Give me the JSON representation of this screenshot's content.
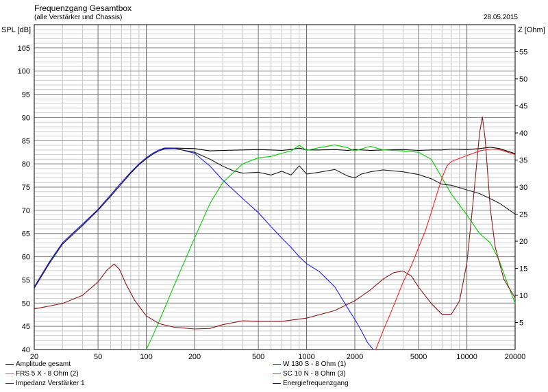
{
  "header": {
    "title": "Frequenzgang Gesamtbox",
    "subtitle": "(alle Verstärker und Chassis)",
    "date": "28.05.2015"
  },
  "chart_data": {
    "type": "line",
    "xscale": "log",
    "xlim": [
      20,
      20000
    ],
    "x_ticks": [
      "20",
      "50",
      "100",
      "200",
      "500",
      "1000",
      "2000",
      "5000",
      "10000",
      "20000"
    ],
    "x_tick_values": [
      20,
      50,
      100,
      200,
      500,
      1000,
      2000,
      5000,
      10000,
      20000
    ],
    "ylabel_left": "SPL [dB]",
    "ylim_left": [
      40,
      110
    ],
    "y_ticks_left": [
      "40",
      "45",
      "50",
      "55",
      "60",
      "65",
      "70",
      "75",
      "80",
      "85",
      "90",
      "95",
      "100",
      "105"
    ],
    "ylabel_right": "Z [Ohm]",
    "ylim_right": [
      0,
      60
    ],
    "y_ticks_right": [
      "5",
      "10",
      "15",
      "20",
      "25",
      "30",
      "35",
      "40",
      "45",
      "50",
      "55"
    ],
    "grid": true,
    "series": [
      {
        "name": "Amplitude gesamt",
        "color": "#000000",
        "axis": "left",
        "x": [
          20,
          25,
          30,
          40,
          50,
          60,
          70,
          80,
          90,
          100,
          110,
          120,
          130,
          150,
          200,
          250,
          300,
          400,
          500,
          600,
          700,
          800,
          900,
          1000,
          1200,
          1500,
          1800,
          2000,
          2500,
          3000,
          4000,
          5000,
          6000,
          7000,
          8000,
          10000,
          12000,
          14000,
          16000,
          20000
        ],
        "y": [
          53.5,
          59,
          63,
          67,
          70.2,
          73.3,
          76,
          78.2,
          80,
          81.3,
          82.3,
          83,
          83.4,
          83.4,
          83.3,
          82.8,
          82.9,
          83.0,
          83.1,
          83.0,
          82.9,
          83.1,
          83.4,
          83.0,
          83.0,
          83.1,
          82.9,
          83.1,
          82.9,
          83.0,
          83.1,
          82.9,
          83.0,
          83.0,
          83.2,
          83.1,
          83.3,
          83.6,
          83.3,
          82.2
        ]
      },
      {
        "name": "FRS 5 X - 8 Ohm (2)",
        "color": "#00d000",
        "axis": "left",
        "x": [
          100,
          110,
          120,
          150,
          200,
          250,
          300,
          400,
          500,
          600,
          700,
          800,
          900,
          1000,
          1200,
          1500,
          1800,
          2000,
          2500,
          3000,
          4000,
          5000,
          6000,
          7000,
          8000,
          10000,
          12000,
          14000,
          16000,
          18000,
          20000
        ],
        "y": [
          40,
          43,
          46,
          54,
          64,
          71.5,
          76,
          80,
          81.3,
          81.6,
          82.3,
          82.8,
          84.0,
          82.9,
          83.5,
          84.1,
          83.5,
          82.8,
          83.8,
          83.0,
          82.8,
          82.5,
          81.0,
          77.0,
          73.5,
          69.0,
          65.0,
          63.0,
          59.0,
          54.0,
          50.0
        ]
      },
      {
        "name": "Impedanz Verstärker 1",
        "color": "#8b1a1a",
        "axis": "right",
        "x": [
          20,
          30,
          40,
          50,
          57,
          63,
          68,
          75,
          85,
          100,
          120,
          150,
          200,
          250,
          300,
          400,
          500,
          700,
          1000,
          1500,
          2000,
          2500,
          3000,
          3500,
          4000,
          4500,
          5000,
          6000,
          7000,
          8000,
          9000,
          10000,
          11000,
          12000,
          12500,
          13000,
          14000,
          15000,
          17000,
          20000
        ],
        "y": [
          7.5,
          8.5,
          10,
          12.5,
          14.7,
          15.8,
          14.8,
          12.0,
          9.0,
          6.2,
          4.8,
          4.1,
          3.8,
          3.9,
          4.6,
          5.3,
          5.2,
          5.2,
          5.8,
          7.2,
          9.0,
          11.0,
          13.0,
          14.2,
          14.5,
          13.6,
          11.5,
          8.5,
          6.5,
          6.5,
          9.0,
          16.0,
          28.0,
          40.0,
          43.0,
          39.0,
          26.0,
          19.0,
          13.0,
          9.5
        ]
      },
      {
        "name": "W 130 S - 8 Ohm (1)",
        "color": "#2020ff",
        "axis": "left",
        "x": [
          20,
          25,
          30,
          40,
          50,
          60,
          70,
          80,
          90,
          100,
          110,
          120,
          130,
          150,
          200,
          250,
          300,
          400,
          500,
          600,
          700,
          800,
          900,
          1000,
          1200,
          1500,
          1800,
          2000,
          2200,
          2400,
          2600
        ],
        "y": [
          53.5,
          59,
          63,
          67,
          70.2,
          73.3,
          76,
          78.2,
          80,
          81.3,
          82.3,
          83,
          83.3,
          83.4,
          82.3,
          79.5,
          76.5,
          72.5,
          69.5,
          66.5,
          64.0,
          62.0,
          60.0,
          58.5,
          56.8,
          53.5,
          49.0,
          46.5,
          44.0,
          41.5,
          39.0
        ]
      },
      {
        "name": "SC 10 N - 8 Ohm (3)",
        "color": "#ff2020",
        "axis": "left",
        "x": [
          2700,
          3000,
          3500,
          4000,
          4500,
          5000,
          5500,
          6000,
          6500,
          7000,
          7500,
          8000,
          9000,
          10000,
          12000,
          14000,
          16000,
          18000,
          20000
        ],
        "y": [
          40.0,
          44.0,
          49.5,
          54.5,
          58.0,
          62.0,
          65.5,
          69.5,
          73.5,
          77.0,
          79.5,
          80.5,
          81.2,
          81.8,
          82.8,
          83.2,
          83.1,
          82.5,
          82.0
        ]
      },
      {
        "name": "Energiefrequenzgang",
        "color": "#202020",
        "axis": "left",
        "x": [
          20,
          25,
          30,
          40,
          50,
          60,
          70,
          80,
          90,
          100,
          110,
          120,
          130,
          150,
          200,
          250,
          300,
          350,
          400,
          500,
          600,
          700,
          800,
          900,
          1000,
          1200,
          1500,
          1800,
          2000,
          2200,
          2500,
          3000,
          4000,
          5000,
          6000,
          7000,
          8000,
          10000,
          12000,
          14000,
          16000,
          20000
        ],
        "y": [
          53.2,
          58.7,
          62.7,
          66.7,
          70,
          73,
          75.7,
          78,
          79.8,
          81.1,
          82.1,
          82.8,
          83.2,
          83.3,
          82.5,
          81.0,
          79.5,
          78.5,
          78.0,
          78.2,
          77.6,
          78.4,
          77.6,
          79.6,
          77.8,
          78.2,
          78.8,
          77.4,
          77.0,
          77.8,
          78.3,
          78.7,
          78.3,
          77.7,
          76.8,
          75.6,
          75.4,
          74.4,
          73.6,
          72.5,
          71.5,
          69.2
        ]
      }
    ]
  },
  "legend": [
    {
      "label": "Amplitude gesamt",
      "color": "#000000"
    },
    {
      "label": "W 130 S - 8 Ohm (1)",
      "color": "#2020ff"
    },
    {
      "label": "FRS 5 X - 8 Ohm (2)",
      "color": "#00d000"
    },
    {
      "label": "SC 10 N - 8 Ohm (3)",
      "color": "#ff2020"
    },
    {
      "label": "Impedanz Verstärker 1",
      "color": "#8b1a1a"
    },
    {
      "label": "Energiefrequenzgang",
      "color": "#202020"
    }
  ]
}
